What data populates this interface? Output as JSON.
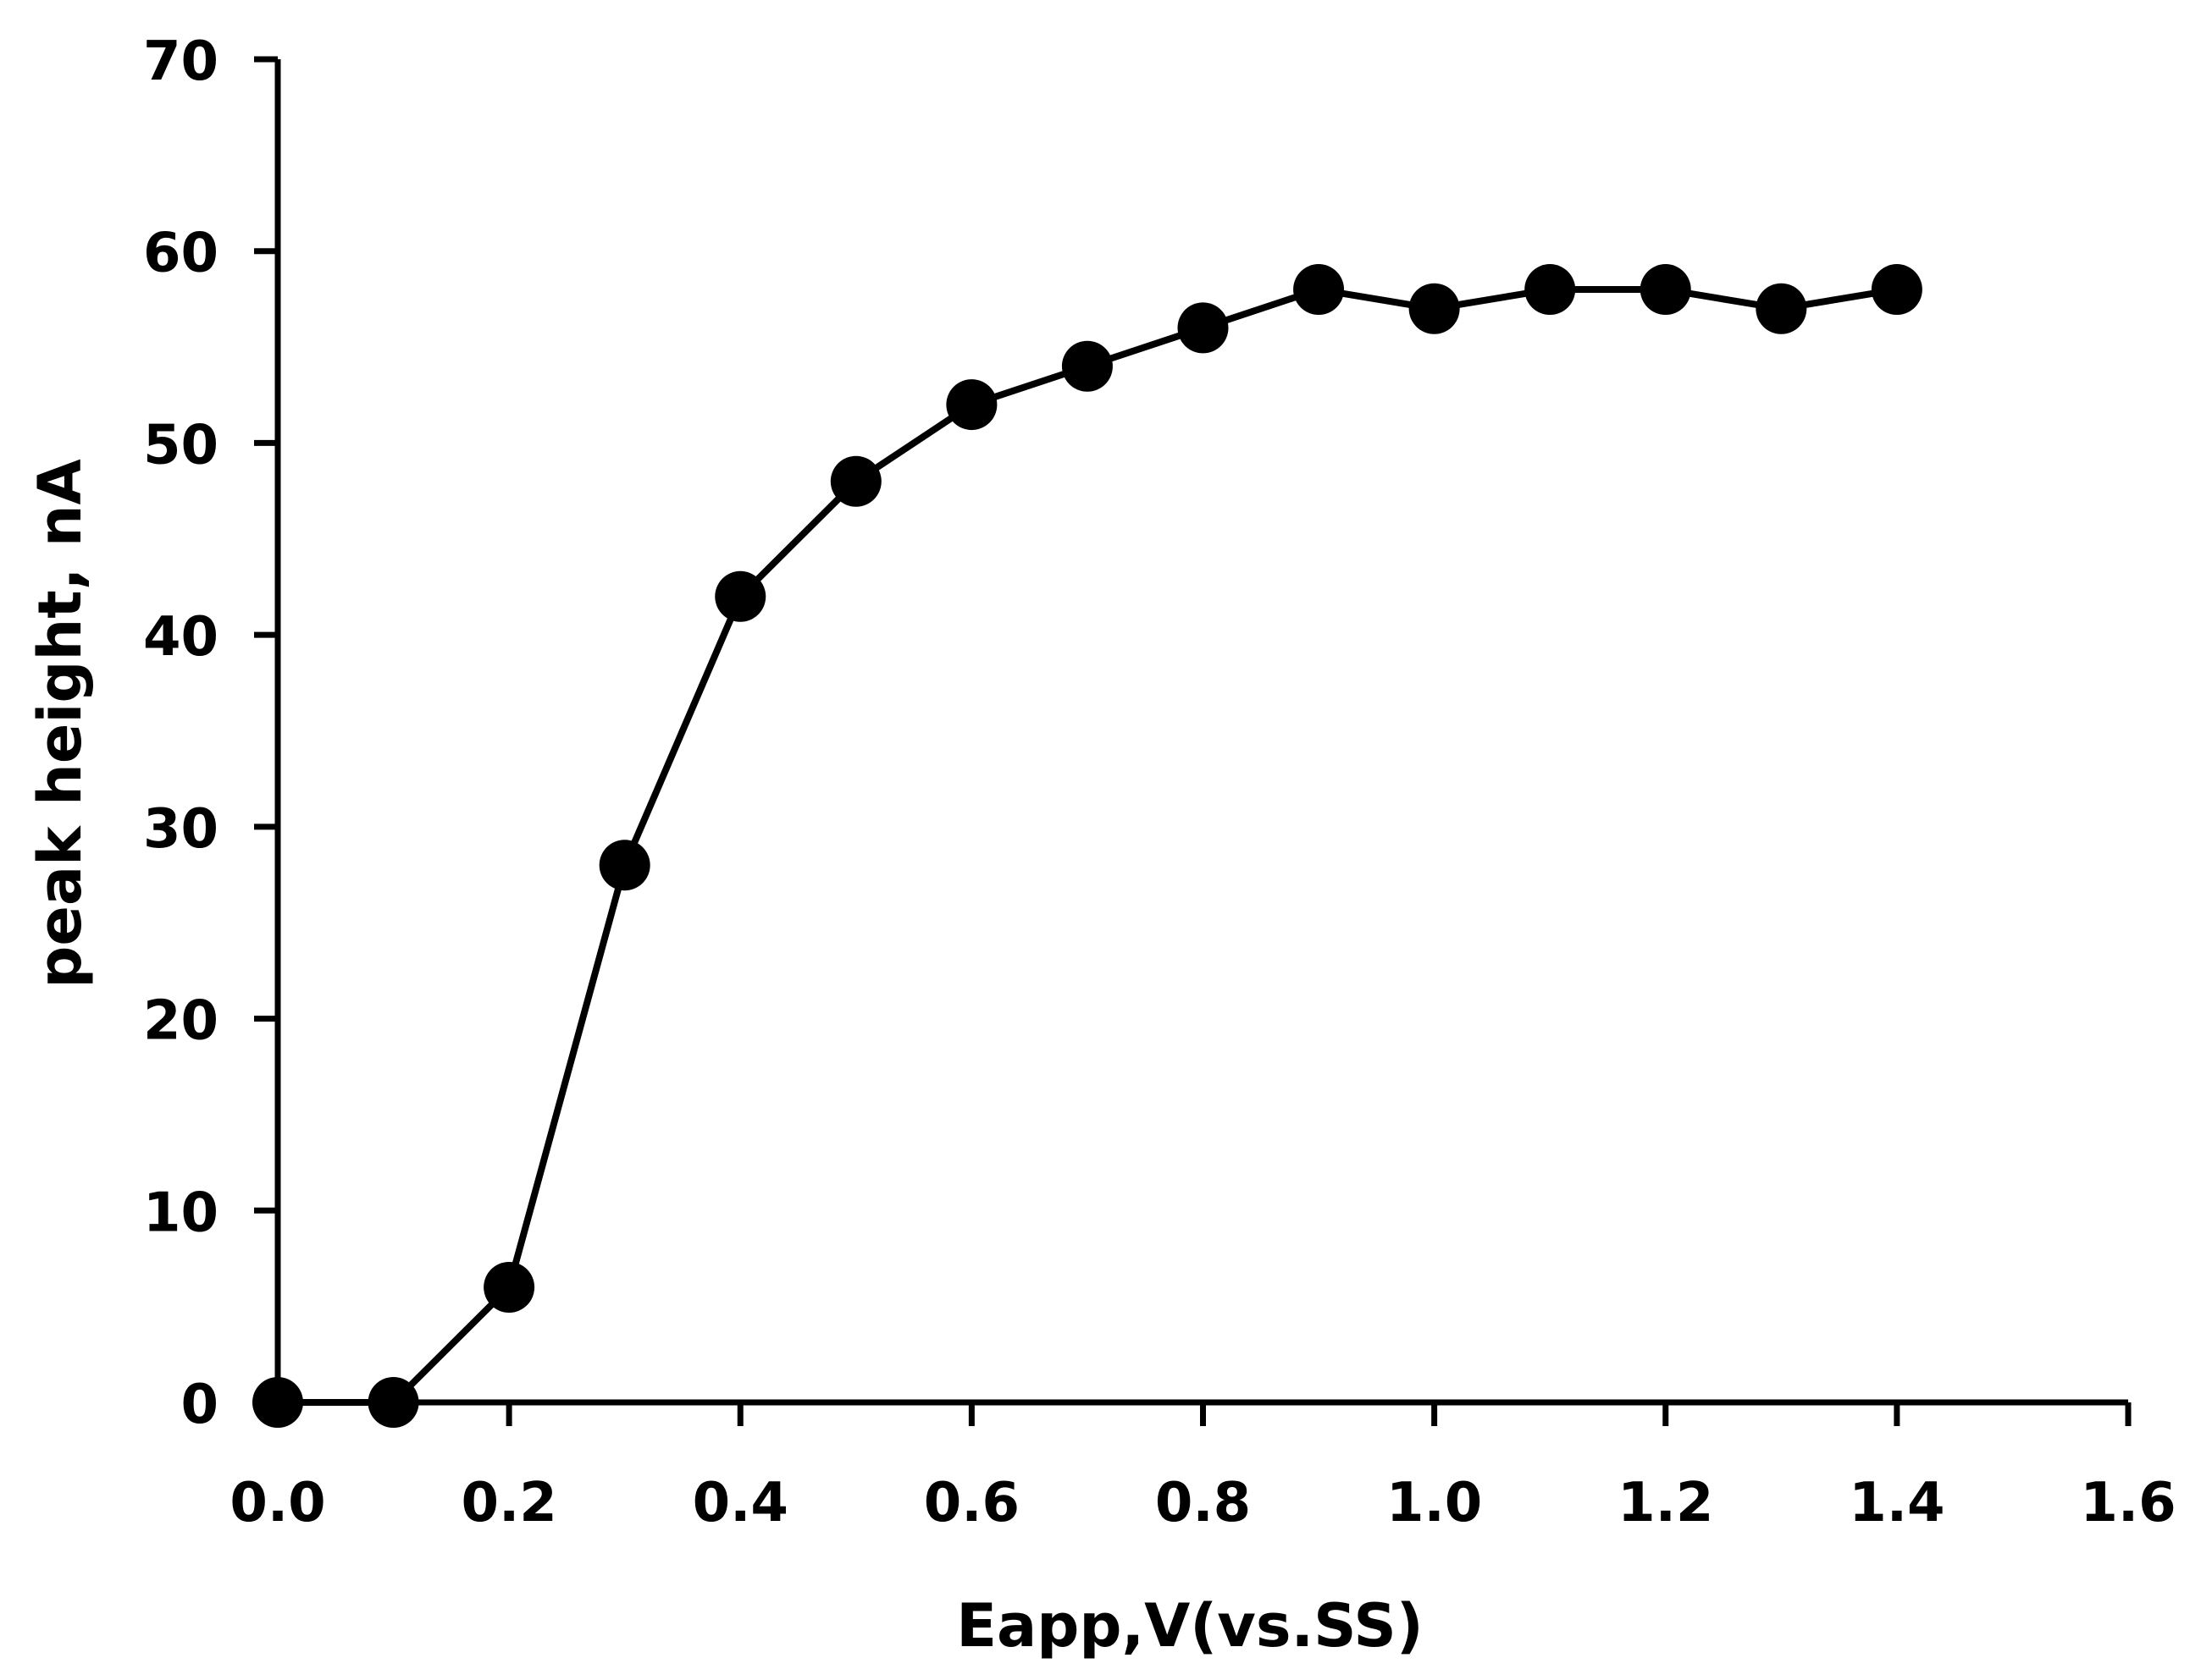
{
  "chart_data": {
    "type": "line",
    "title": "",
    "xlabel": "Eapp,V(vs.SS)",
    "ylabel": "peak height, nA",
    "xlim": [
      0.0,
      1.6
    ],
    "ylim": [
      0,
      70
    ],
    "grid": false,
    "legend": "none",
    "x_ticks": [
      "0.0",
      "0.2",
      "0.4",
      "0.6",
      "0.8",
      "1.0",
      "1.2",
      "1.4",
      "1.6"
    ],
    "y_ticks": [
      "0",
      "10",
      "20",
      "30",
      "40",
      "50",
      "60",
      "70"
    ],
    "series": [
      {
        "name": "peak height",
        "marker": "circle",
        "color": "#000000",
        "x": [
          0.0,
          0.1,
          0.2,
          0.3,
          0.4,
          0.5,
          0.6,
          0.7,
          0.8,
          0.9,
          1.0,
          1.1,
          1.2,
          1.3,
          1.4
        ],
        "y": [
          0,
          0,
          6,
          28,
          42,
          48,
          52,
          54,
          56,
          58,
          57,
          58,
          58,
          57,
          58
        ]
      }
    ]
  }
}
